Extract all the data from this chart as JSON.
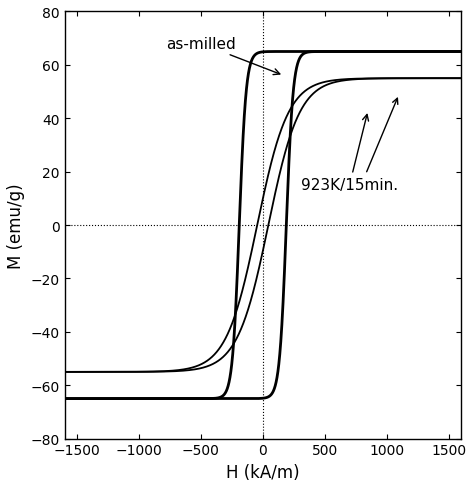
{
  "xlim": [
    -1600,
    1600
  ],
  "ylim": [
    -80,
    80
  ],
  "xlabel": "H (kA/m)",
  "ylabel": "M (emu/g)",
  "xticks": [
    -1500,
    -1000,
    -500,
    0,
    500,
    1000,
    1500
  ],
  "yticks": [
    -80,
    -60,
    -40,
    -20,
    0,
    20,
    40,
    60,
    80
  ],
  "annotation_milled": "as-milled",
  "annotation_annealed": "923K/15min.",
  "background_color": "#ffffff",
  "line_color": "#000000",
  "figsize": [
    4.74,
    4.89
  ],
  "dpi": 100
}
